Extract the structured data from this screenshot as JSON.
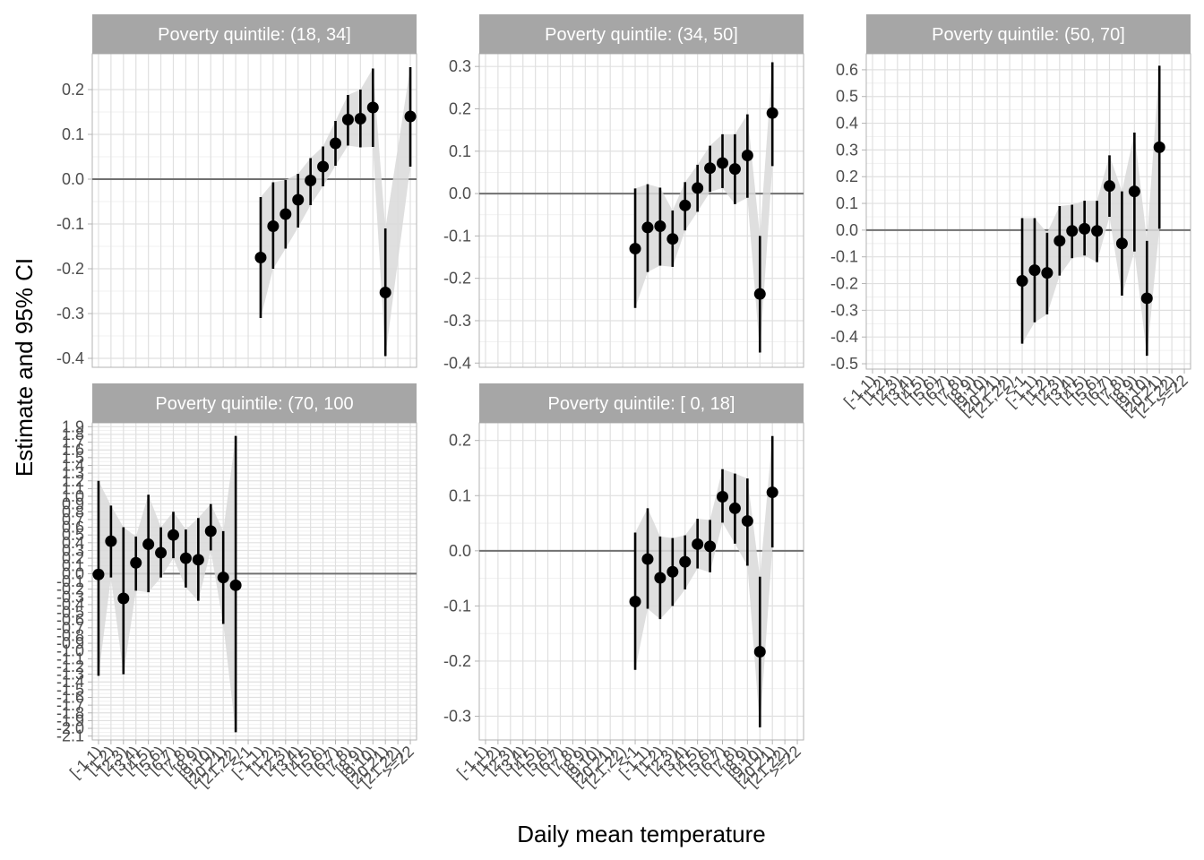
{
  "chart_data": {
    "type": "errorbar-facets",
    "ylabel": "Estimate and 95% CI",
    "xlabel": "Daily mean temperature",
    "x_categories": [
      "[-1,1)",
      "[1,2)",
      "[2,3)",
      "[3,4)",
      "[4,5)",
      "[5,6)",
      "[6,7)",
      "[7,8)",
      "[8,9)",
      "[9,10)",
      "[20,21)",
      "[21,22)",
      "<-1",
      "[-1,1)",
      "[1,2)",
      "[2,3)",
      "[3,4)",
      "[4,5)",
      "[5,6)",
      "[6,7)",
      "[7,8)",
      "[8,9)",
      "[9,10)",
      "[20,21)",
      "[21,22)",
      ">=22"
    ],
    "facet_label_prefix": "Poverty quintile:",
    "grid": true,
    "reference_line_y": 0,
    "colors": {
      "point": "#000000",
      "ribbon": "#d9d9d9",
      "strip": "#a6a6a6",
      "zero_line": "#707070",
      "grid": "#e0e0e0",
      "panel_border": "#b3b3b3"
    },
    "panels": [
      {
        "label": "(18, 34]",
        "ylim": [
          -0.42,
          0.28
        ],
        "yticks": [
          -0.4,
          -0.3,
          -0.2,
          -0.1,
          0.0,
          0.1,
          0.2
        ],
        "ytick_labels": [
          "-0.4",
          "-0.3",
          "-0.2",
          "-0.1",
          "0.0",
          "0.1",
          "0.2"
        ],
        "x_index": [
          13,
          14,
          15,
          16,
          17,
          18,
          19,
          20,
          21,
          22,
          23,
          24,
          25
        ],
        "estimate": [
          -0.175,
          -0.105,
          -0.078,
          -0.046,
          -0.003,
          0.028,
          0.08,
          0.133,
          0.135,
          0.16,
          -0.253,
          null,
          0.14
        ],
        "lower": [
          -0.31,
          -0.2,
          -0.155,
          -0.108,
          -0.058,
          -0.016,
          0.03,
          0.075,
          0.071,
          0.072,
          -0.395,
          null,
          0.028
        ],
        "upper": [
          -0.04,
          -0.007,
          -0.002,
          0.012,
          0.047,
          0.073,
          0.13,
          0.188,
          0.2,
          0.247,
          -0.11,
          null,
          0.25
        ]
      },
      {
        "label": "(34, 50]",
        "ylim": [
          -0.41,
          0.33
        ],
        "yticks": [
          -0.4,
          -0.3,
          -0.2,
          -0.1,
          0.0,
          0.1,
          0.2,
          0.3
        ],
        "ytick_labels": [
          "-0.4",
          "-0.3",
          "-0.2",
          "-0.1",
          "0.0",
          "0.1",
          "0.2",
          "0.3"
        ],
        "x_index": [
          12,
          13,
          14,
          15,
          16,
          17,
          18,
          19,
          20,
          21,
          22,
          23
        ],
        "estimate": [
          -0.13,
          -0.08,
          -0.077,
          -0.107,
          -0.028,
          0.013,
          0.06,
          0.072,
          0.058,
          0.09,
          -0.237,
          0.19
        ],
        "lower": [
          -0.27,
          -0.185,
          -0.17,
          -0.173,
          -0.087,
          -0.043,
          0.004,
          0.013,
          -0.025,
          -0.01,
          -0.375,
          0.065
        ],
        "upper": [
          0.012,
          0.022,
          0.014,
          -0.04,
          0.027,
          0.068,
          0.113,
          0.14,
          0.14,
          0.187,
          -0.1,
          0.31
        ]
      },
      {
        "label": "(50, 70]",
        "ylim": [
          -0.52,
          0.66
        ],
        "yticks": [
          -0.5,
          -0.4,
          -0.3,
          -0.2,
          -0.1,
          0.0,
          0.1,
          0.2,
          0.3,
          0.4,
          0.5,
          0.6
        ],
        "ytick_labels": [
          "-0.5",
          "-0.4",
          "-0.3",
          "-0.2",
          "-0.1",
          "0.0",
          "0.1",
          "0.2",
          "0.3",
          "0.4",
          "0.5",
          "0.6"
        ],
        "x_index": [
          12,
          13,
          14,
          15,
          16,
          17,
          18,
          19,
          20,
          21,
          22,
          23
        ],
        "estimate": [
          -0.19,
          -0.15,
          -0.16,
          -0.04,
          -0.003,
          0.005,
          -0.003,
          0.165,
          -0.05,
          0.145,
          -0.255,
          0.31
        ],
        "lower": [
          -0.425,
          -0.345,
          -0.315,
          -0.17,
          -0.105,
          -0.095,
          -0.12,
          0.05,
          -0.245,
          -0.08,
          -0.47,
          0.005
        ],
        "upper": [
          0.045,
          0.045,
          -0.01,
          0.09,
          0.095,
          0.11,
          0.11,
          0.28,
          0.145,
          0.365,
          -0.04,
          0.615
        ]
      },
      {
        "label": "(70, 100",
        "ylim": [
          -2.15,
          1.95
        ],
        "yticks": [
          -2.1,
          -2.0,
          -1.9,
          -1.8,
          -1.7,
          -1.6,
          -1.5,
          -1.4,
          -1.3,
          -1.2,
          -1.1,
          -1.0,
          -0.9,
          -0.8,
          -0.7,
          -0.6,
          -0.5,
          -0.4,
          -0.3,
          -0.2,
          -0.1,
          0.0,
          0.1,
          0.2,
          0.3,
          0.4,
          0.5,
          0.6,
          0.7,
          0.8,
          0.9,
          1.0,
          1.1,
          1.2,
          1.3,
          1.4,
          1.5,
          1.6,
          1.7,
          1.8,
          1.9
        ],
        "ytick_labels": [
          "-2.1",
          "-2.0",
          "-1.9",
          "-1.8",
          "-1.7",
          "-1.6",
          "-1.5",
          "-1.4",
          "-1.3",
          "-1.2",
          "-1.1",
          "-1.0",
          "-0.9",
          "-0.8",
          "-0.7",
          "-0.6",
          "-0.5",
          "-0.4",
          "-0.3",
          "-0.2",
          "-0.1",
          "0.0",
          "0.1",
          "0.2",
          "0.3",
          "0.4",
          "0.5",
          "0.6",
          "0.7",
          "0.8",
          "0.9",
          "1.0",
          "1.1",
          "1.2",
          "1.3",
          "1.4",
          "1.5",
          "1.6",
          "1.7",
          "1.8",
          "1.9"
        ],
        "x_index": [
          0,
          1,
          2,
          3,
          4,
          5,
          6,
          7,
          8,
          9,
          10,
          11
        ],
        "estimate": [
          -0.01,
          0.42,
          -0.32,
          0.14,
          0.38,
          0.27,
          0.5,
          0.2,
          0.18,
          0.55,
          -0.05,
          -0.15
        ],
        "lower": [
          -1.32,
          -0.05,
          -1.3,
          -0.22,
          -0.24,
          -0.05,
          0.2,
          -0.18,
          -0.35,
          0.3,
          -0.65,
          -2.05
        ],
        "upper": [
          1.2,
          0.88,
          0.6,
          0.48,
          1.02,
          0.6,
          0.8,
          0.57,
          0.72,
          0.9,
          0.55,
          1.78
        ]
      },
      {
        "label": "[ 0, 18]",
        "ylim": [
          -0.343,
          0.232
        ],
        "yticks": [
          -0.3,
          -0.2,
          -0.1,
          0.0,
          0.1,
          0.2
        ],
        "ytick_labels": [
          "-0.3",
          "-0.2",
          "-0.1",
          "0.0",
          "0.1",
          "0.2"
        ],
        "x_index": [
          12,
          13,
          14,
          15,
          16,
          17,
          18,
          19,
          20,
          21,
          22,
          23
        ],
        "estimate": [
          -0.092,
          -0.015,
          -0.049,
          -0.038,
          -0.02,
          0.012,
          0.008,
          0.098,
          0.077,
          0.054,
          -0.183,
          0.106
        ],
        "lower": [
          -0.216,
          -0.105,
          -0.124,
          -0.1,
          -0.07,
          -0.032,
          -0.039,
          0.051,
          0.013,
          -0.027,
          -0.32,
          0.006
        ],
        "upper": [
          0.033,
          0.077,
          0.026,
          0.023,
          0.028,
          0.058,
          0.056,
          0.148,
          0.14,
          0.131,
          -0.047,
          0.208
        ]
      }
    ]
  }
}
